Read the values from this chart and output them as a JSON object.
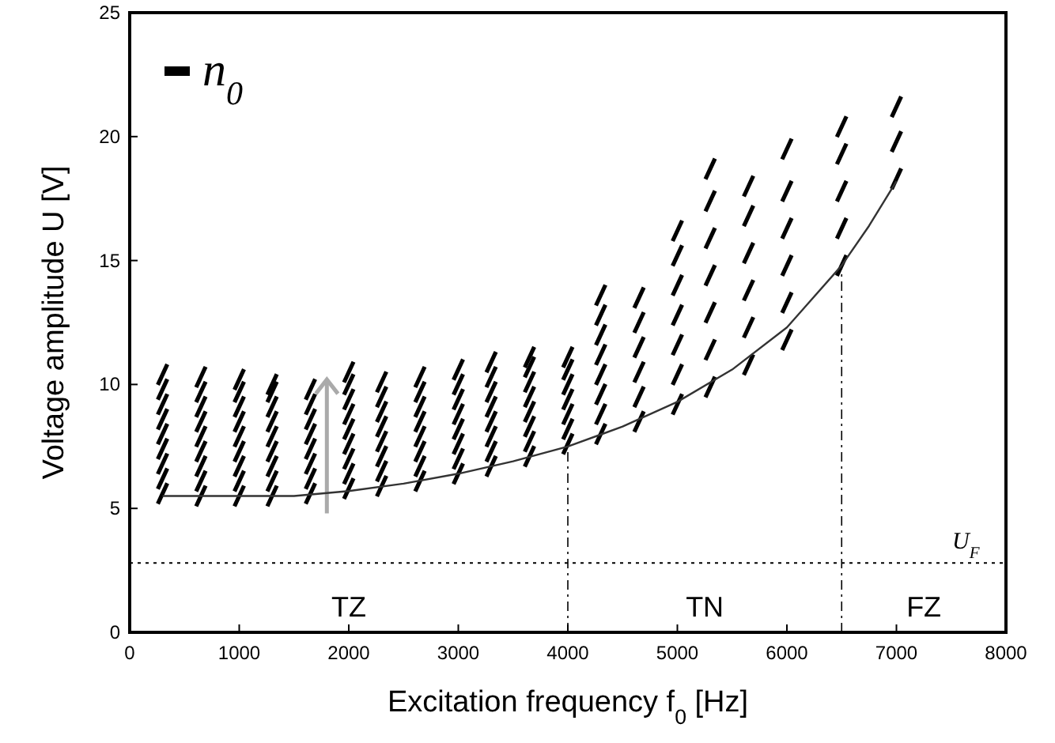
{
  "chart_data": {
    "type": "scatter",
    "xlabel": "Excitation frequency f$_{0}$ [Hz]",
    "ylabel": "Voltage amplitude U [V]",
    "xlim": [
      0,
      8000
    ],
    "xticks": [
      0,
      1000,
      2000,
      3000,
      4000,
      5000,
      6000,
      7000,
      8000
    ],
    "ylim": [
      0,
      25
    ],
    "yticks": [
      0,
      5,
      10,
      15,
      20,
      25
    ],
    "grid": false,
    "legend": "top left",
    "series": [
      {
        "name": "n$_{0}$",
        "color": "#000000",
        "x": [
          300,
          300,
          300,
          300,
          300,
          300,
          300,
          300,
          300,
          650,
          650,
          650,
          650,
          650,
          650,
          650,
          650,
          650,
          1000,
          1000,
          1000,
          1000,
          1000,
          1000,
          1000,
          1000,
          1000,
          1300,
          1300,
          1300,
          1300,
          1300,
          1300,
          1300,
          1300,
          1300,
          1650,
          1650,
          1650,
          1650,
          1650,
          1650,
          1650,
          1650,
          2000,
          2000,
          2000,
          2000,
          2000,
          2000,
          2000,
          2000,
          2000,
          2300,
          2300,
          2300,
          2300,
          2300,
          2300,
          2300,
          2300,
          2650,
          2650,
          2650,
          2650,
          2650,
          2650,
          2650,
          2650,
          3000,
          3000,
          3000,
          3000,
          3000,
          3000,
          3000,
          3000,
          3300,
          3300,
          3300,
          3300,
          3300,
          3300,
          3300,
          3300,
          3650,
          3650,
          3650,
          3650,
          3650,
          3650,
          3650,
          3650,
          4000,
          4000,
          4000,
          4000,
          4000,
          4000,
          4000,
          4300,
          4300,
          4300,
          4300,
          4300,
          4300,
          4300,
          4300,
          4650,
          4650,
          4650,
          4650,
          4650,
          4650,
          5000,
          5000,
          5000,
          5000,
          5000,
          5000,
          5000,
          5300,
          5300,
          5300,
          5300,
          5300,
          5300,
          5300,
          5650,
          5650,
          5650,
          5650,
          5650,
          5650,
          6000,
          6000,
          6000,
          6000,
          6000,
          6000,
          6500,
          6500,
          6500,
          6500,
          6500,
          7000,
          7000,
          7000
        ],
        "values": [
          5.6,
          6.2,
          6.8,
          7.4,
          8.0,
          8.6,
          9.2,
          9.8,
          10.4,
          5.5,
          6.1,
          6.7,
          7.3,
          7.9,
          8.5,
          9.1,
          9.7,
          10.3,
          5.5,
          6.1,
          6.7,
          7.3,
          7.9,
          8.5,
          9.1,
          9.7,
          10.2,
          5.5,
          6.1,
          6.7,
          7.3,
          7.9,
          8.5,
          9.1,
          9.7,
          10.0,
          5.6,
          6.2,
          6.8,
          7.4,
          8.0,
          8.6,
          9.2,
          9.8,
          5.8,
          6.4,
          7.0,
          7.6,
          8.2,
          8.8,
          9.4,
          10.0,
          10.5,
          5.9,
          6.5,
          7.1,
          7.7,
          8.3,
          8.9,
          9.5,
          10.1,
          6.1,
          6.7,
          7.3,
          7.9,
          8.5,
          9.1,
          9.7,
          10.3,
          6.4,
          7.0,
          7.6,
          8.2,
          8.8,
          9.4,
          10.0,
          10.6,
          6.7,
          7.3,
          7.9,
          8.5,
          9.1,
          9.7,
          10.3,
          10.9,
          7.1,
          7.7,
          8.3,
          8.9,
          9.5,
          10.1,
          10.7,
          11.1,
          7.6,
          8.2,
          8.8,
          9.4,
          10.0,
          10.6,
          11.1,
          8.0,
          8.8,
          9.6,
          10.4,
          11.2,
          12.0,
          12.8,
          13.6,
          8.5,
          9.5,
          10.5,
          11.5,
          12.5,
          13.5,
          9.2,
          10.4,
          11.6,
          12.8,
          14.0,
          15.2,
          16.2,
          9.9,
          11.4,
          12.9,
          14.4,
          15.9,
          17.4,
          18.7,
          10.8,
          12.3,
          13.8,
          15.3,
          16.8,
          18.0,
          11.8,
          13.3,
          14.8,
          16.3,
          17.8,
          19.5,
          14.8,
          16.3,
          17.8,
          19.3,
          20.4,
          18.3,
          19.8,
          21.2
        ]
      },
      {
        "type": "line",
        "color": "#333333",
        "x": [
          300,
          1000,
          1500,
          2000,
          2500,
          3000,
          3500,
          4000,
          4500,
          5000,
          5500,
          6000,
          6500,
          6750,
          7000
        ],
        "values": [
          5.5,
          5.5,
          5.5,
          5.7,
          6.0,
          6.4,
          6.9,
          7.5,
          8.3,
          9.3,
          10.6,
          12.3,
          14.8,
          16.4,
          18.2
        ]
      }
    ],
    "ref_lines": [
      {
        "axis": "y",
        "value": 2.8,
        "label": "U$_{F}$",
        "line_style": "dotted",
        "color": "#000000"
      },
      {
        "axis": "x",
        "value": 4000,
        "line_style": "dashdot",
        "color": "#000000"
      },
      {
        "axis": "x",
        "value": 6500,
        "line_style": "dashdot",
        "color": "#000000"
      }
    ],
    "annotations": [
      "TZ",
      "TN",
      "FZ"
    ]
  }
}
